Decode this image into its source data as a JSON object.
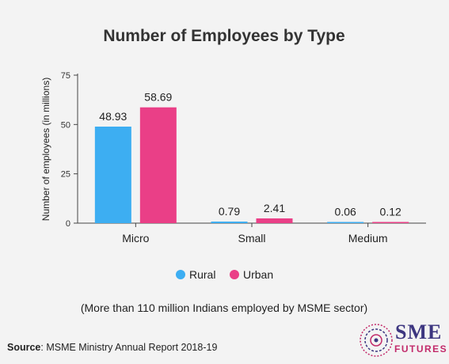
{
  "colors": {
    "rural": "#3daef2",
    "urban": "#ea3f87",
    "axis": "#444444",
    "background": "#f3f3f3"
  },
  "chart_data": {
    "type": "bar",
    "title": "Number of Employees by Type",
    "ylabel": "Number of employees (in millions)",
    "xlabel": "",
    "categories": [
      "Micro",
      "Small",
      "Medium"
    ],
    "series": [
      {
        "name": "Rural",
        "values": [
          48.93,
          0.79,
          0.06
        ],
        "labels": [
          "48.93",
          "0.79",
          "0.06"
        ]
      },
      {
        "name": "Urban",
        "values": [
          58.69,
          2.41,
          0.12
        ],
        "labels": [
          "58.69",
          "2.41",
          "0.12"
        ]
      }
    ],
    "ylim": [
      0,
      75
    ],
    "yticks": [
      "0",
      "25",
      "50",
      "75"
    ],
    "grid": false,
    "legend": "bottom-center",
    "note": "(More than 110 million Indians employed by MSME sector)"
  },
  "source": {
    "label": "Source",
    "text": ": MSME Ministry Annual Report 2018-19"
  },
  "logo": {
    "line1": "SME",
    "line2": "FUTURES"
  }
}
